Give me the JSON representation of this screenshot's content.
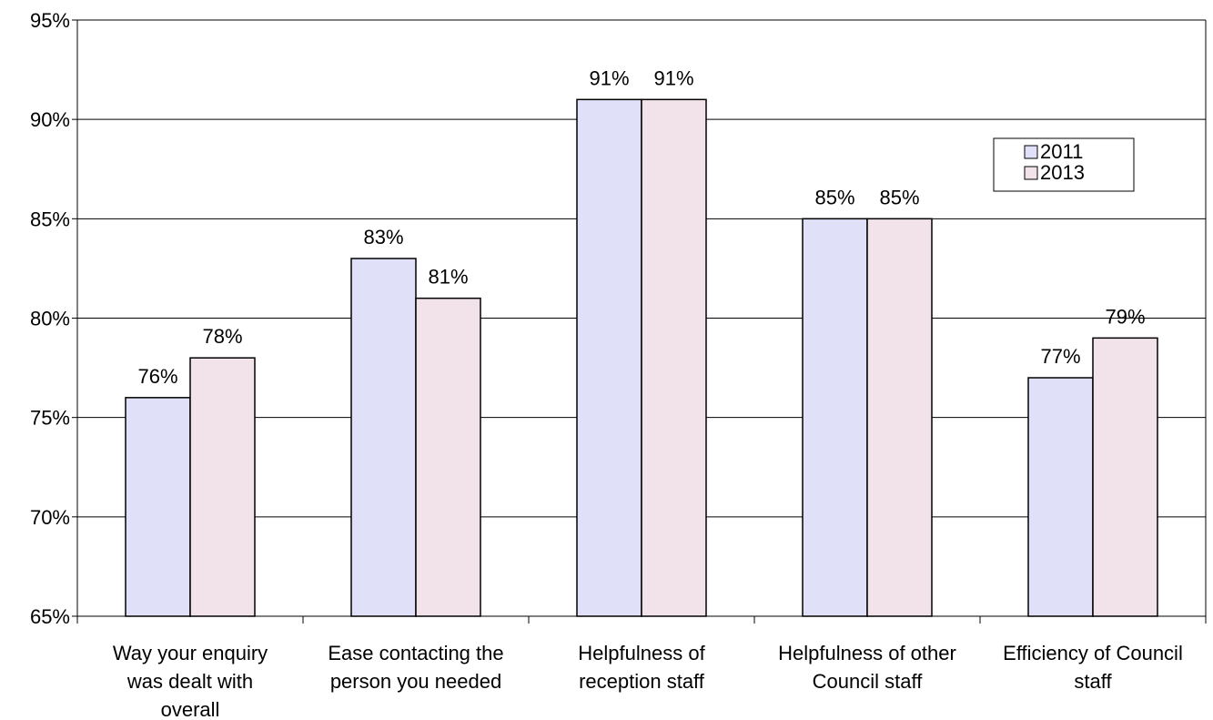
{
  "chart_data": {
    "type": "bar",
    "categories": [
      [
        "Way your enquiry",
        "was dealt with",
        "overall"
      ],
      [
        "Ease contacting the",
        "person you needed"
      ],
      [
        "Helpfulness of",
        "reception staff"
      ],
      [
        "Helpfulness of other",
        "Council staff"
      ],
      [
        "Efficiency of Council",
        "staff"
      ]
    ],
    "series": [
      {
        "name": "2011",
        "values": [
          76,
          83,
          91,
          85,
          77
        ],
        "color": "#e0e0f8"
      },
      {
        "name": "2013",
        "values": [
          78,
          81,
          91,
          85,
          79
        ],
        "color": "#f2e3ea"
      }
    ],
    "value_suffix": "%",
    "ylim": [
      65,
      95
    ],
    "yticks": [
      65,
      70,
      75,
      80,
      85,
      90,
      95
    ],
    "ytick_labels": [
      "65%",
      "70%",
      "75%",
      "80%",
      "85%",
      "90%",
      "95%"
    ],
    "grid": true,
    "legend_position": "right"
  }
}
